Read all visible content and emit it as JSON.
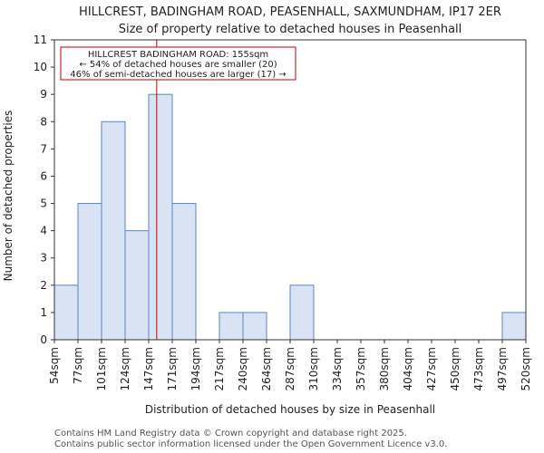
{
  "chart_data": {
    "type": "bar",
    "title_line1": "HILLCREST, BADINGHAM ROAD, PEASENHALL, SAXMUNDHAM, IP17 2ER",
    "title_line2": "Size of property relative to detached houses in Peasenhall",
    "xlabel": "Distribution of detached houses by size in Peasenhall",
    "ylabel": "Number of detached properties",
    "bin_edges": [
      "54sqm",
      "77sqm",
      "101sqm",
      "124sqm",
      "147sqm",
      "171sqm",
      "194sqm",
      "217sqm",
      "240sqm",
      "264sqm",
      "287sqm",
      "310sqm",
      "334sqm",
      "357sqm",
      "380sqm",
      "404sqm",
      "427sqm",
      "450sqm",
      "473sqm",
      "497sqm",
      "520sqm"
    ],
    "values": [
      2,
      5,
      8,
      4,
      9,
      5,
      0,
      1,
      1,
      0,
      2,
      0,
      0,
      0,
      0,
      0,
      0,
      0,
      0,
      1
    ],
    "ylim": [
      0,
      11
    ],
    "yticks": [
      0,
      1,
      2,
      3,
      4,
      5,
      6,
      7,
      8,
      9,
      10,
      11
    ],
    "marker_bin_position": 4.34,
    "annotation": {
      "line1": "HILLCREST BADINGHAM ROAD: 155sqm",
      "line2": "← 54% of detached houses are smaller (20)",
      "line3": "46% of semi-detached houses are larger (17) →"
    },
    "colors": {
      "bar_fill": "#dae3f3",
      "bar_edge": "#5b87c5",
      "marker": "#c00000",
      "annotation_border": "#c00000"
    }
  },
  "footer": {
    "line1": "Contains HM Land Registry data © Crown copyright and database right 2025.",
    "line2": "Contains public sector information licensed under the Open Government Licence v3.0."
  }
}
